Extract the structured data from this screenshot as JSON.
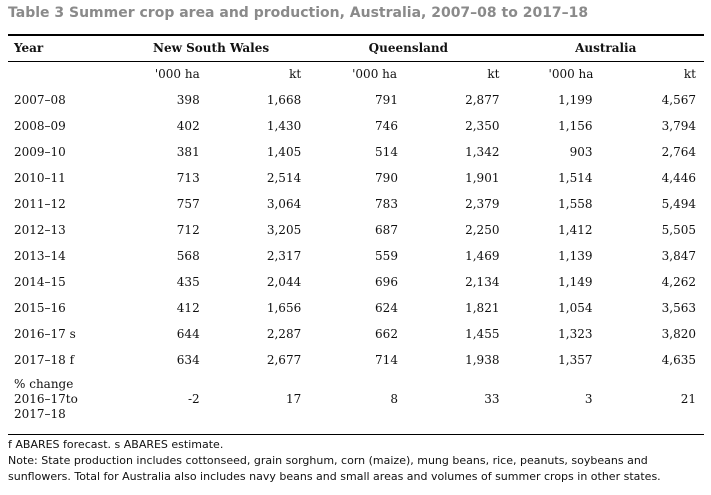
{
  "title": "Table 3 Summer crop area and production, Australia, 2007–08 to 2017–18",
  "table": {
    "year_header": "Year",
    "regions": [
      "New South Wales",
      "Queensland",
      "Australia"
    ],
    "unit_area": "'000 ha",
    "unit_prod": "kt",
    "rows": [
      {
        "year": "2007–08",
        "values": [
          "398",
          "1,668",
          "791",
          "2,877",
          "1,199",
          "4,567"
        ]
      },
      {
        "year": "2008–09",
        "values": [
          "402",
          "1,430",
          "746",
          "2,350",
          "1,156",
          "3,794"
        ]
      },
      {
        "year": "2009–10",
        "values": [
          "381",
          "1,405",
          "514",
          "1,342",
          "903",
          "2,764"
        ]
      },
      {
        "year": "2010–11",
        "values": [
          "713",
          "2,514",
          "790",
          "1,901",
          "1,514",
          "4,446"
        ]
      },
      {
        "year": "2011–12",
        "values": [
          "757",
          "3,064",
          "783",
          "2,379",
          "1,558",
          "5,494"
        ]
      },
      {
        "year": "2012–13",
        "values": [
          "712",
          "3,205",
          "687",
          "2,250",
          "1,412",
          "5,505"
        ]
      },
      {
        "year": "2013–14",
        "values": [
          "568",
          "2,317",
          "559",
          "1,469",
          "1,139",
          "3,847"
        ]
      },
      {
        "year": "2014–15",
        "values": [
          "435",
          "2,044",
          "696",
          "2,134",
          "1,149",
          "4,262"
        ]
      },
      {
        "year": "2015–16",
        "values": [
          "412",
          "1,656",
          "624",
          "1,821",
          "1,054",
          "3,563"
        ]
      },
      {
        "year": "2016–17 s",
        "values": [
          "644",
          "2,287",
          "662",
          "1,455",
          "1,323",
          "3,820"
        ]
      },
      {
        "year": "2017–18 f",
        "values": [
          "634",
          "2,677",
          "714",
          "1,938",
          "1,357",
          "4,635"
        ]
      }
    ],
    "change_row": {
      "label_lines": [
        "% change",
        "2016–17to",
        "2017–18"
      ],
      "values": [
        "-2",
        "17",
        "8",
        "33",
        "3",
        "21"
      ]
    }
  },
  "notes": {
    "footnote": "f ABARES forecast. s ABARES estimate.",
    "note_line1": "Note: State production includes cottonseed, grain sorghum, corn (maize), mung beans, rice, peanuts, soybeans and",
    "note_line2": "sunflowers. Total for Australia also includes navy beans and small areas and volumes of summer crops in other states."
  }
}
